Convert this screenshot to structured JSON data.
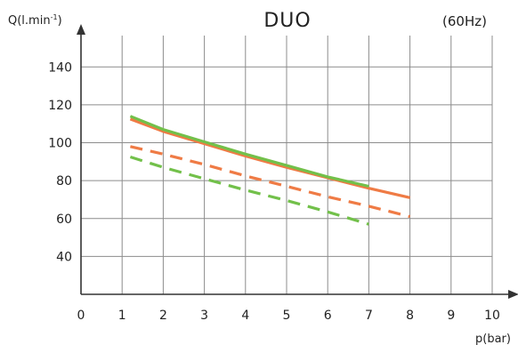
{
  "chart_data": {
    "type": "line",
    "title": "DUO",
    "subtitle": "(60Hz)",
    "xlabel": "p(bar)",
    "ylabel_main": "Q(l.min",
    "ylabel_sup": "-1",
    "ylabel_close": ")",
    "xlim": [
      0,
      10
    ],
    "ylim": [
      20,
      150
    ],
    "xticks": [
      0,
      1,
      2,
      3,
      4,
      5,
      6,
      7,
      8,
      9,
      10
    ],
    "yticks": [
      40,
      60,
      80,
      100,
      120,
      140
    ],
    "grid": true,
    "series": [
      {
        "color": "#ef7b45",
        "style": "solid",
        "x": [
          1.2,
          2,
          3,
          4,
          5,
          6,
          7,
          8
        ],
        "y": [
          112.5,
          106,
          99.5,
          93,
          87,
          81.5,
          76,
          71
        ]
      },
      {
        "color": "#ef7b45",
        "style": "dashed",
        "x": [
          1.2,
          2,
          3,
          4,
          5,
          6,
          7,
          8
        ],
        "y": [
          98,
          94,
          88.5,
          82.5,
          77,
          71.5,
          66.5,
          61
        ]
      },
      {
        "color": "#72c04a",
        "style": "solid",
        "x": [
          1.2,
          2,
          3,
          4,
          5,
          6,
          7
        ],
        "y": [
          114,
          107,
          100.5,
          94,
          88,
          82,
          77
        ]
      },
      {
        "color": "#72c04a",
        "style": "dashed",
        "x": [
          1.2,
          2,
          3,
          4,
          5,
          6,
          7
        ],
        "y": [
          92.5,
          87,
          81,
          75,
          69.5,
          63.5,
          57
        ]
      }
    ]
  }
}
